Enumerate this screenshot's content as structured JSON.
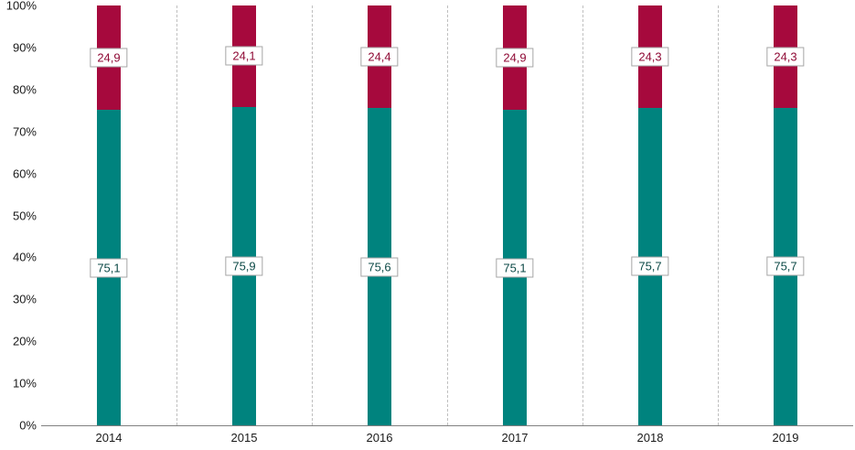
{
  "chart_data": {
    "type": "bar",
    "stacked": true,
    "title": "",
    "xlabel": "",
    "ylabel": "",
    "ylim": [
      0,
      100
    ],
    "categories": [
      "2014",
      "2015",
      "2016",
      "2017",
      "2018",
      "2019"
    ],
    "series": [
      {
        "name": "bottom-teal-series",
        "values": [
          75.1,
          75.9,
          75.6,
          75.1,
          75.7,
          75.7
        ],
        "labels": [
          "75,1",
          "75,9",
          "75,6",
          "75,1",
          "75,7",
          "75,7"
        ],
        "color": "#00837E",
        "label_text_color": "#0d4a47"
      },
      {
        "name": "top-crimson-series",
        "values": [
          24.9,
          24.1,
          24.4,
          24.9,
          24.3,
          24.3
        ],
        "labels": [
          "24,9",
          "24,1",
          "24,4",
          "24,9",
          "24,3",
          "24,3"
        ],
        "color": "#A6093D",
        "label_text_color": "#8f0a35"
      }
    ],
    "y_ticks": [
      "0%",
      "10%",
      "20%",
      "30%",
      "40%",
      "50%",
      "60%",
      "70%",
      "80%",
      "90%",
      "100%"
    ],
    "grid": "vertical-dashed-between-categories",
    "legend": "none",
    "colors": {
      "gridline": "#bfbfbf",
      "axis_line": "#808080",
      "tick_text": "#1a1a1a",
      "label_box_border": "#a6a6a6",
      "label_box_background": "#ffffff"
    }
  }
}
